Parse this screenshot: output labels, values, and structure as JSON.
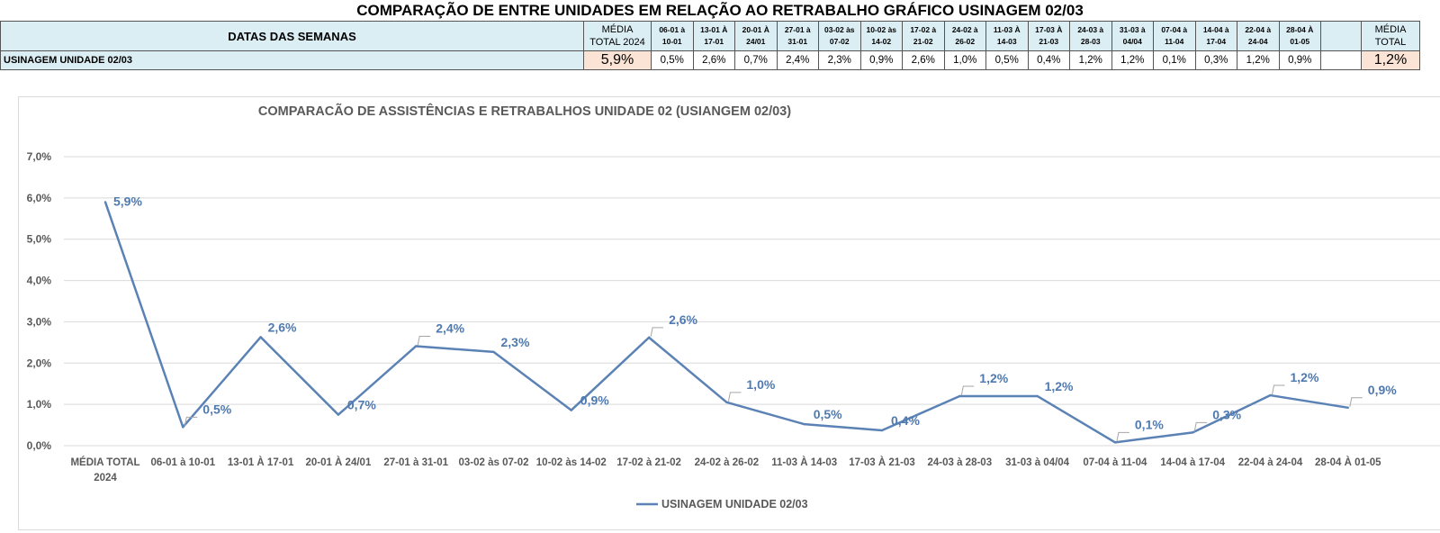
{
  "page": {
    "title": "COMPARAÇÃO DE ENTRE UNIDADES EM RELAÇÃO AO RETRABALHO GRÁFICO USINAGEM 02/03"
  },
  "table": {
    "header_label": "DATAS DAS SEMANAS",
    "avg_2024_header": [
      "MÉDIA",
      "TOTAL 2024"
    ],
    "weeks": [
      [
        "06-01 à",
        "10-01"
      ],
      [
        "13-01 À",
        "17-01"
      ],
      [
        "20-01 À",
        "24/01"
      ],
      [
        "27-01 à",
        "31-01"
      ],
      [
        "03-02 às",
        "07-02"
      ],
      [
        "10-02 às",
        "14-02"
      ],
      [
        "17-02 à",
        "21-02"
      ],
      [
        "24-02 à",
        "26-02"
      ],
      [
        "11-03 À",
        "14-03"
      ],
      [
        "17-03 À",
        "21-03"
      ],
      [
        "24-03 à",
        "28-03"
      ],
      [
        "31-03 à",
        "04/04"
      ],
      [
        "07-04 à",
        "11-04"
      ],
      [
        "14-04 à",
        "17-04"
      ],
      [
        "22-04 à",
        "24-04"
      ],
      [
        "28-04 À",
        "01-05"
      ]
    ],
    "avg_total_header": [
      "MÉDIA",
      "TOTAL"
    ],
    "row_label": "USINAGEM UNIDADE 02/03",
    "avg_2024_value": "5,9%",
    "week_values": [
      "0,5%",
      "2,6%",
      "0,7%",
      "2,4%",
      "2,3%",
      "0,9%",
      "2,6%",
      "1,0%",
      "0,5%",
      "0,4%",
      "1,2%",
      "1,2%",
      "0,1%",
      "0,3%",
      "1,2%",
      "0,9%"
    ],
    "avg_total_value": "1,2%"
  },
  "colors": {
    "line": "#5b82b5",
    "label": "#4f7ab0",
    "header_bg": "#dbeef4",
    "avg_bg": "#fbe4d5",
    "grid": "#d9d9d9"
  },
  "chart_data": {
    "type": "line",
    "title": "COMPARACÃO DE ASSISTÊNCIAS E RETRABALHOS UNIDADE 02  (USIANGEM 02/03)",
    "categories": [
      "MÉDIA TOTAL 2024",
      "06-01 à 10-01",
      "13-01 À 17-01",
      "20-01 À 24/01",
      "27-01 à 31-01",
      "03-02 às 07-02",
      "10-02 às 14-02",
      "17-02 à 21-02",
      "24-02 à 26-02",
      "11-03 À 14-03",
      "17-03 À 21-03",
      "24-03 à 28-03",
      "31-03 à 04/04",
      "07-04 à 11-04",
      "14-04 à 17-04",
      "22-04 à 24-04",
      "28-04 À 01-05"
    ],
    "category_lines": [
      [
        "MÉDIA TOTAL",
        "2024"
      ],
      [
        "06-01 à 10-01"
      ],
      [
        "13-01 À 17-01"
      ],
      [
        "20-01 À 24/01"
      ],
      [
        "27-01 à 31-01"
      ],
      [
        "03-02 às 07-02"
      ],
      [
        "10-02 às 14-02"
      ],
      [
        "17-02 à 21-02"
      ],
      [
        "24-02 à 26-02"
      ],
      [
        "11-03 À 14-03"
      ],
      [
        "17-03 À 21-03"
      ],
      [
        "24-03 à 28-03"
      ],
      [
        "31-03 à 04/04"
      ],
      [
        "07-04 à 11-04"
      ],
      [
        "14-04 à 17-04"
      ],
      [
        "22-04 à 24-04"
      ],
      [
        "28-04 À 01-05"
      ]
    ],
    "series": [
      {
        "name": "USINAGEM UNIDADE 02/03",
        "values": [
          5.9,
          0.45,
          2.63,
          0.75,
          2.41,
          2.27,
          0.86,
          2.62,
          1.05,
          0.52,
          0.37,
          1.2,
          1.2,
          0.08,
          0.32,
          1.22,
          0.92
        ],
        "data_labels": [
          "5,9%",
          "0,5%",
          "2,6%",
          "0,7%",
          "2,4%",
          "2,3%",
          "0,9%",
          "2,6%",
          "1,0%",
          "0,5%",
          "0,4%",
          "1,2%",
          "1,2%",
          "0,1%",
          "0,3%",
          "1,2%",
          "0,9%"
        ]
      }
    ],
    "ylim": [
      0,
      7
    ],
    "y_ticks": [
      "0,0%",
      "1,0%",
      "2,0%",
      "3,0%",
      "4,0%",
      "5,0%",
      "6,0%",
      "7,0%"
    ],
    "grid": true,
    "legend_position": "bottom"
  }
}
